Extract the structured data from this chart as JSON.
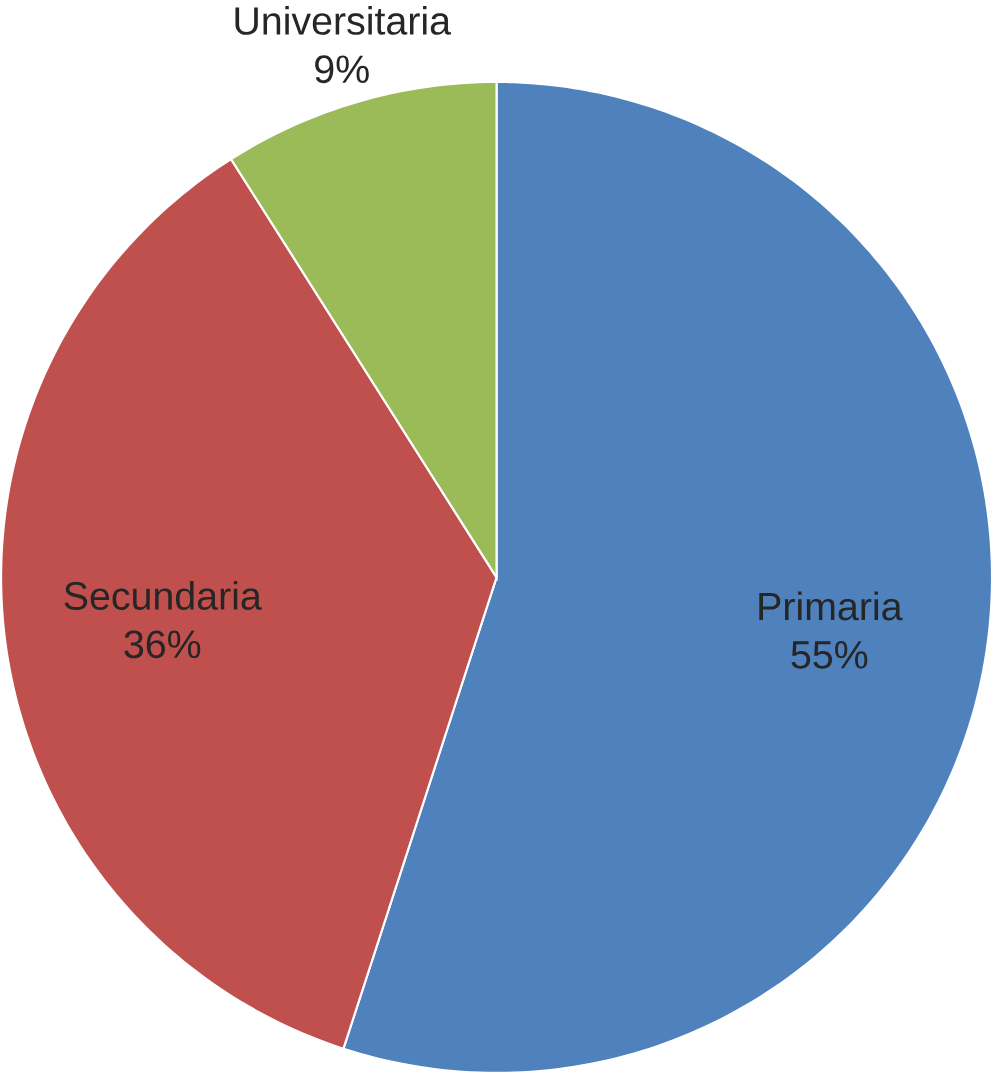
{
  "chart_data": {
    "type": "pie",
    "categories": [
      "Primaria",
      "Secundaria",
      "Universitaria"
    ],
    "values": [
      55,
      36,
      9
    ],
    "value_labels": [
      "55%",
      "36%",
      "9%"
    ],
    "colors": [
      "#4f81bd",
      "#c0504d",
      "#9bbb59"
    ]
  }
}
